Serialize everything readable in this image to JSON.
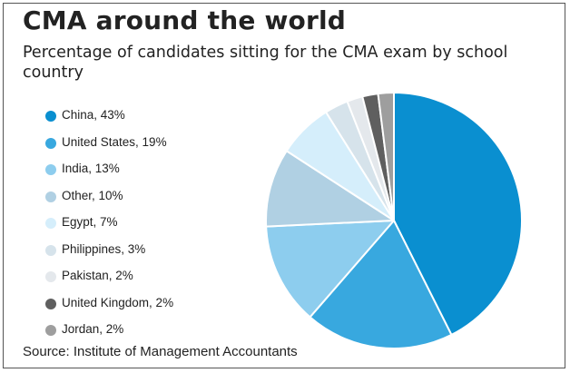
{
  "title": "CMA around the world",
  "subtitle": "Percentage of candidates sitting for the CMA exam by school country",
  "source": "Source: Institute of Management Accountants",
  "chart_data": {
    "type": "pie",
    "title": "CMA around the world",
    "subtitle": "Percentage of candidates sitting for the CMA exam by school country",
    "legend_position": "left",
    "slices": [
      {
        "label": "China, 43%",
        "category": "China",
        "value": 43,
        "color": "#0a8fd0"
      },
      {
        "label": "United States, 19%",
        "category": "United States",
        "value": 19,
        "color": "#38a8df"
      },
      {
        "label": "India, 13%",
        "category": "India",
        "value": 13,
        "color": "#8dcdee"
      },
      {
        "label": "Other, 10%",
        "category": "Other",
        "value": 10,
        "color": "#b0d0e3"
      },
      {
        "label": "Egypt, 7%",
        "category": "Egypt",
        "value": 7,
        "color": "#d5eefb"
      },
      {
        "label": "Philippines, 3%",
        "category": "Philippines",
        "value": 3,
        "color": "#d6e3eb"
      },
      {
        "label": "Pakistan, 2%",
        "category": "Pakistan",
        "value": 2,
        "color": "#e4e8ec"
      },
      {
        "label": "United Kingdom, 2%",
        "category": "United Kingdom",
        "value": 2,
        "color": "#5f5f5f"
      },
      {
        "label": "Jordan, 2%",
        "category": "Jordan",
        "value": 2,
        "color": "#9e9e9e"
      }
    ]
  }
}
